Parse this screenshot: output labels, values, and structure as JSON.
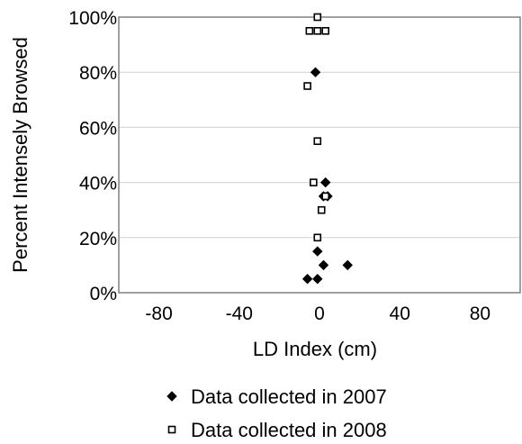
{
  "chart_data": {
    "type": "scatter",
    "xlabel": "LD Index (cm)",
    "ylabel": "Percent Intensely Browsed",
    "xlim": [
      -100,
      100
    ],
    "ylim": [
      0,
      100
    ],
    "x_ticks": [
      {
        "value": -80,
        "label": "-80"
      },
      {
        "value": -40,
        "label": "-40"
      },
      {
        "value": 0,
        "label": "0"
      },
      {
        "value": 40,
        "label": "40"
      },
      {
        "value": 80,
        "label": "80"
      }
    ],
    "y_ticks": [
      {
        "value": 0,
        "label": "0%"
      },
      {
        "value": 20,
        "label": "20%"
      },
      {
        "value": 40,
        "label": "40%"
      },
      {
        "value": 60,
        "label": "60%"
      },
      {
        "value": 80,
        "label": "80%"
      },
      {
        "value": 100,
        "label": "100%"
      }
    ],
    "grid": true,
    "legend_position": "bottom",
    "series": [
      {
        "name": "Data collected in 2007",
        "marker": "filled-diamond",
        "color": "#000000",
        "points": [
          {
            "x": -2,
            "y": 80
          },
          {
            "x": 3,
            "y": 40
          },
          {
            "x": 2,
            "y": 35
          },
          {
            "x": 4,
            "y": 35
          },
          {
            "x": -1,
            "y": 15
          },
          {
            "x": 2,
            "y": 10
          },
          {
            "x": 14,
            "y": 10
          },
          {
            "x": -6,
            "y": 5
          },
          {
            "x": -1,
            "y": 5
          }
        ]
      },
      {
        "name": "Data collected in 2008",
        "marker": "open-square",
        "color": "#000000",
        "points": [
          {
            "x": -1,
            "y": 100
          },
          {
            "x": -5,
            "y": 95
          },
          {
            "x": -1,
            "y": 95
          },
          {
            "x": 3,
            "y": 95
          },
          {
            "x": -6,
            "y": 75
          },
          {
            "x": -1,
            "y": 55
          },
          {
            "x": -3,
            "y": 40
          },
          {
            "x": 3,
            "y": 35
          },
          {
            "x": 1,
            "y": 30
          },
          {
            "x": -1,
            "y": 20
          }
        ]
      }
    ]
  }
}
